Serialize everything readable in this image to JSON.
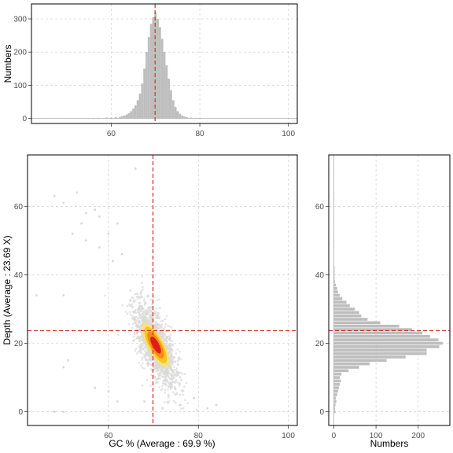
{
  "chart_data": [
    {
      "id": "gc-histogram",
      "type": "bar",
      "orientation": "vertical",
      "title": "",
      "xlabel": "",
      "ylabel": "Numbers",
      "xlim": [
        42,
        102
      ],
      "ylim": [
        -15,
        345
      ],
      "xticks": [
        60,
        80,
        100
      ],
      "yticks": [
        0,
        100,
        200,
        300
      ],
      "grid": true,
      "bar_color": "#bebebe",
      "ref_line": {
        "x": 69.9,
        "color": "#d62728",
        "style": "dashed"
      },
      "bins": [
        {
          "x": 45,
          "count": 1
        },
        {
          "x": 50,
          "count": 1
        },
        {
          "x": 52,
          "count": 1
        },
        {
          "x": 54,
          "count": 1
        },
        {
          "x": 55,
          "count": 1
        },
        {
          "x": 56,
          "count": 2
        },
        {
          "x": 57,
          "count": 2
        },
        {
          "x": 58,
          "count": 1
        },
        {
          "x": 59,
          "count": 3
        },
        {
          "x": 60,
          "count": 3
        },
        {
          "x": 61,
          "count": 4
        },
        {
          "x": 62,
          "count": 5
        },
        {
          "x": 62.5,
          "count": 7
        },
        {
          "x": 63,
          "count": 9
        },
        {
          "x": 63.5,
          "count": 12
        },
        {
          "x": 64,
          "count": 16
        },
        {
          "x": 64.5,
          "count": 22
        },
        {
          "x": 65,
          "count": 30
        },
        {
          "x": 65.5,
          "count": 40
        },
        {
          "x": 66,
          "count": 55
        },
        {
          "x": 66.5,
          "count": 75
        },
        {
          "x": 67,
          "count": 105
        },
        {
          "x": 67.5,
          "count": 150
        },
        {
          "x": 68,
          "count": 200
        },
        {
          "x": 68.5,
          "count": 245
        },
        {
          "x": 69,
          "count": 285
        },
        {
          "x": 69.5,
          "count": 305
        },
        {
          "x": 70,
          "count": 320
        },
        {
          "x": 70.5,
          "count": 300
        },
        {
          "x": 71,
          "count": 275
        },
        {
          "x": 71.5,
          "count": 240
        },
        {
          "x": 72,
          "count": 200
        },
        {
          "x": 72.5,
          "count": 160
        },
        {
          "x": 73,
          "count": 120
        },
        {
          "x": 73.5,
          "count": 85
        },
        {
          "x": 74,
          "count": 55
        },
        {
          "x": 74.5,
          "count": 35
        },
        {
          "x": 75,
          "count": 22
        },
        {
          "x": 75.5,
          "count": 14
        },
        {
          "x": 76,
          "count": 9
        },
        {
          "x": 76.5,
          "count": 6
        },
        {
          "x": 77,
          "count": 4
        },
        {
          "x": 78,
          "count": 3
        },
        {
          "x": 79,
          "count": 2
        },
        {
          "x": 80,
          "count": 2
        },
        {
          "x": 82,
          "count": 1
        },
        {
          "x": 84,
          "count": 1
        },
        {
          "x": 86,
          "count": 1
        },
        {
          "x": 88,
          "count": 1
        },
        {
          "x": 100,
          "count": 1
        }
      ]
    },
    {
      "id": "gc-depth-scatter",
      "type": "scatter",
      "title": "",
      "xlabel": "GC % (Average : 69.9 %)",
      "ylabel": "Depth (Average : 23.69 X)",
      "xlim": [
        42,
        102
      ],
      "ylim": [
        -4,
        75
      ],
      "xticks": [
        60,
        80,
        100
      ],
      "yticks": [
        0,
        20,
        40,
        60
      ],
      "grid": true,
      "density_colors": [
        "#d9d9d9",
        "#f5e27a",
        "#f7c21a",
        "#f18a12",
        "#e31a1c"
      ],
      "ref_lines": {
        "x": 69.9,
        "y": 23.69,
        "color": "#d62728",
        "style": "dashed"
      },
      "density_center": {
        "x": 70.5,
        "y": 19.5
      },
      "outliers": [
        {
          "x": 44,
          "y": 34
        },
        {
          "x": 48,
          "y": 63
        },
        {
          "x": 53,
          "y": 64
        },
        {
          "x": 50,
          "y": 61
        },
        {
          "x": 55,
          "y": 58
        },
        {
          "x": 54,
          "y": 55
        },
        {
          "x": 57,
          "y": 59
        },
        {
          "x": 58,
          "y": 57
        },
        {
          "x": 52,
          "y": 52
        },
        {
          "x": 55,
          "y": 50
        },
        {
          "x": 58,
          "y": 48
        },
        {
          "x": 60,
          "y": 52
        },
        {
          "x": 62,
          "y": 55
        },
        {
          "x": 66,
          "y": 71
        },
        {
          "x": 63,
          "y": 46
        },
        {
          "x": 61,
          "y": 44
        },
        {
          "x": 50,
          "y": 34
        },
        {
          "x": 51,
          "y": 15
        },
        {
          "x": 50,
          "y": 13
        },
        {
          "x": 48,
          "y": 0
        },
        {
          "x": 50,
          "y": 0
        },
        {
          "x": 57,
          "y": 7
        },
        {
          "x": 60,
          "y": 6
        },
        {
          "x": 62,
          "y": 3
        },
        {
          "x": 68,
          "y": 3
        },
        {
          "x": 72,
          "y": 1
        },
        {
          "x": 76,
          "y": 2
        },
        {
          "x": 79,
          "y": 4
        },
        {
          "x": 82,
          "y": 1
        },
        {
          "x": 84,
          "y": 2
        }
      ]
    },
    {
      "id": "depth-histogram",
      "type": "bar",
      "orientation": "horizontal",
      "title": "",
      "xlabel": "Numbers",
      "ylabel": "",
      "xlim": [
        -12,
        275
      ],
      "ylim": [
        -4,
        75
      ],
      "xticks": [
        0,
        100,
        200
      ],
      "yticks": [
        0,
        20,
        40,
        60
      ],
      "grid": true,
      "bar_color": "#bebebe",
      "ref_line": {
        "y": 23.69,
        "color": "#d62728",
        "style": "dashed"
      },
      "bins": [
        {
          "y": 0,
          "count": 4
        },
        {
          "y": 1,
          "count": 3
        },
        {
          "y": 2,
          "count": 4
        },
        {
          "y": 3,
          "count": 6
        },
        {
          "y": 4,
          "count": 5
        },
        {
          "y": 5,
          "count": 8
        },
        {
          "y": 6,
          "count": 10
        },
        {
          "y": 7,
          "count": 12
        },
        {
          "y": 8,
          "count": 14
        },
        {
          "y": 9,
          "count": 17
        },
        {
          "y": 10,
          "count": 14
        },
        {
          "y": 11,
          "count": 18
        },
        {
          "y": 12,
          "count": 35
        },
        {
          "y": 13,
          "count": 60
        },
        {
          "y": 14,
          "count": 85
        },
        {
          "y": 15,
          "count": 125
        },
        {
          "y": 16,
          "count": 170
        },
        {
          "y": 17,
          "count": 220
        },
        {
          "y": 18,
          "count": 220
        },
        {
          "y": 19,
          "count": 250
        },
        {
          "y": 20,
          "count": 258
        },
        {
          "y": 21,
          "count": 248
        },
        {
          "y": 22,
          "count": 228
        },
        {
          "y": 23,
          "count": 210
        },
        {
          "y": 24,
          "count": 185
        },
        {
          "y": 25,
          "count": 155
        },
        {
          "y": 26,
          "count": 110
        },
        {
          "y": 27,
          "count": 80
        },
        {
          "y": 28,
          "count": 65
        },
        {
          "y": 29,
          "count": 60
        },
        {
          "y": 30,
          "count": 50
        },
        {
          "y": 31,
          "count": 38
        },
        {
          "y": 32,
          "count": 30
        },
        {
          "y": 33,
          "count": 20
        },
        {
          "y": 34,
          "count": 14
        },
        {
          "y": 35,
          "count": 10
        },
        {
          "y": 36,
          "count": 8
        },
        {
          "y": 37,
          "count": 5
        },
        {
          "y": 38,
          "count": 3
        },
        {
          "y": 39,
          "count": 2
        },
        {
          "y": 40,
          "count": 2
        },
        {
          "y": 41,
          "count": 2
        },
        {
          "y": 42,
          "count": 2
        },
        {
          "y": 43,
          "count": 1
        },
        {
          "y": 44,
          "count": 1
        },
        {
          "y": 46,
          "count": 1
        },
        {
          "y": 48,
          "count": 1
        },
        {
          "y": 50,
          "count": 1
        },
        {
          "y": 52,
          "count": 1
        },
        {
          "y": 54,
          "count": 1
        },
        {
          "y": 56,
          "count": 1
        },
        {
          "y": 58,
          "count": 1
        },
        {
          "y": 62,
          "count": 1
        },
        {
          "y": 64,
          "count": 1
        },
        {
          "y": 71,
          "count": 1
        }
      ]
    }
  ]
}
